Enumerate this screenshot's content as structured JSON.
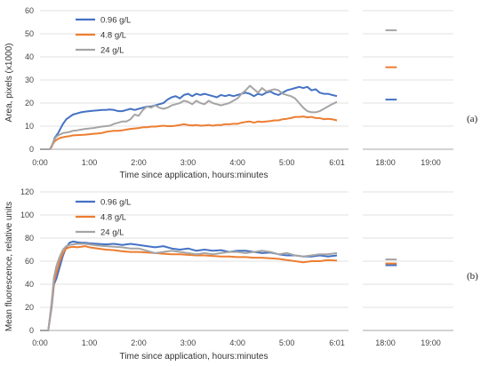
{
  "chart_data": [
    {
      "type": "line",
      "panel_label": "(a)",
      "ylabel": "Area, pixels (x1000)",
      "xlabel": "Time since application, hours:minutes",
      "ylim": [
        0,
        60
      ],
      "yticks": [
        "0",
        "10",
        "20",
        "30",
        "40",
        "50",
        "60"
      ],
      "xlim_minutes": [
        0,
        375
      ],
      "xticks": [
        "0:00",
        "1:00",
        "2:00",
        "3:00",
        "4:00",
        "5:00",
        "6:01"
      ],
      "xticks_minutes": [
        0,
        60,
        120,
        180,
        240,
        300,
        361
      ],
      "break_xticks": [
        "18:00",
        "19:00"
      ],
      "grid": true,
      "legend_position": "top-left",
      "series": [
        {
          "name": "0.96 g/L",
          "color": "#4472C4",
          "x": [
            0,
            12,
            14,
            16,
            18,
            20,
            22,
            25,
            28,
            32,
            36,
            40,
            45,
            50,
            55,
            60,
            65,
            70,
            75,
            80,
            85,
            90,
            95,
            100,
            105,
            110,
            115,
            120,
            125,
            130,
            135,
            140,
            145,
            150,
            155,
            160,
            165,
            170,
            175,
            180,
            185,
            190,
            195,
            200,
            205,
            210,
            215,
            220,
            225,
            230,
            235,
            240,
            245,
            250,
            255,
            260,
            265,
            270,
            275,
            280,
            285,
            290,
            295,
            300,
            305,
            310,
            315,
            320,
            325,
            330,
            335,
            340,
            345,
            350,
            355,
            361
          ],
          "y": [
            0,
            0,
            1,
            3,
            5,
            6,
            7,
            9,
            11,
            13,
            14,
            15,
            15.5,
            16,
            16.3,
            16.5,
            16.7,
            16.8,
            17,
            17,
            17.2,
            17,
            16.5,
            16.5,
            17,
            17.5,
            17,
            17.5,
            18,
            18.5,
            18.5,
            19,
            19.5,
            20,
            21.5,
            22.5,
            23,
            22,
            23.5,
            24,
            23,
            24,
            23.5,
            24,
            23.5,
            23,
            22.5,
            23.5,
            23,
            23.5,
            23,
            23.5,
            24,
            24.5,
            24,
            23,
            24,
            23.5,
            24.5,
            25,
            24,
            23.5,
            24.5,
            25.5,
            26,
            26.5,
            27,
            26.5,
            27,
            25.5,
            26,
            24.5,
            24,
            24,
            23.5,
            23
          ],
          "after_break_minutes": [
            1080,
            1095
          ],
          "after_break_y": 21.5
        },
        {
          "name": "4.8 g/L",
          "color": "#ED7D31",
          "x": [
            0,
            12,
            14,
            16,
            18,
            20,
            22,
            25,
            28,
            32,
            36,
            40,
            45,
            50,
            55,
            60,
            65,
            70,
            75,
            80,
            85,
            90,
            95,
            100,
            105,
            110,
            115,
            120,
            125,
            130,
            135,
            140,
            145,
            150,
            155,
            160,
            165,
            170,
            175,
            180,
            185,
            190,
            195,
            200,
            205,
            210,
            215,
            220,
            225,
            230,
            235,
            240,
            245,
            250,
            255,
            260,
            265,
            270,
            275,
            280,
            285,
            290,
            295,
            300,
            305,
            310,
            315,
            320,
            325,
            330,
            335,
            340,
            345,
            350,
            355,
            361
          ],
          "y": [
            0,
            0,
            1,
            2.5,
            3.5,
            4,
            4.5,
            5,
            5.2,
            5.5,
            5.7,
            6,
            6.1,
            6.2,
            6.3,
            6.5,
            6.7,
            6.8,
            7,
            7.5,
            7.8,
            8,
            8,
            8.2,
            8.5,
            8.8,
            9,
            9.2,
            9.5,
            9.5,
            9.8,
            9.8,
            10,
            10.2,
            10,
            10,
            10.2,
            10.5,
            10.8,
            10.5,
            10.3,
            10.5,
            10.2,
            10.3,
            10.5,
            10.2,
            10.5,
            10.5,
            10.8,
            10.8,
            11,
            11,
            11.5,
            11.8,
            12,
            11.5,
            12,
            11.8,
            12,
            12.2,
            12.5,
            12.5,
            13,
            13.2,
            13.5,
            14,
            14,
            14.2,
            13.8,
            14,
            13.5,
            13.5,
            13,
            13.2,
            13,
            12.5
          ],
          "after_break_minutes": [
            1080,
            1095
          ],
          "after_break_y": 35.5
        },
        {
          "name": "24 g/L",
          "color": "#A5A5A5",
          "x": [
            0,
            12,
            14,
            16,
            18,
            20,
            22,
            25,
            28,
            32,
            36,
            40,
            45,
            50,
            55,
            60,
            65,
            70,
            75,
            80,
            85,
            90,
            95,
            100,
            105,
            110,
            115,
            120,
            125,
            130,
            135,
            140,
            145,
            150,
            155,
            160,
            165,
            170,
            175,
            180,
            185,
            190,
            195,
            200,
            205,
            210,
            215,
            220,
            225,
            230,
            235,
            240,
            245,
            250,
            255,
            260,
            265,
            270,
            275,
            280,
            285,
            290,
            295,
            300,
            305,
            310,
            315,
            320,
            325,
            330,
            335,
            340,
            345,
            350,
            355,
            361
          ],
          "y": [
            0,
            0,
            1.5,
            3,
            4.5,
            5.5,
            6,
            6.5,
            7,
            7.2,
            7.5,
            8,
            8.2,
            8.5,
            8.8,
            9,
            9.2,
            9.5,
            9.8,
            10,
            10.2,
            11,
            11.5,
            12,
            12,
            13,
            15,
            14.5,
            17,
            18.5,
            18,
            19,
            18,
            17.5,
            18,
            19,
            19.5,
            20,
            21,
            20.5,
            19.5,
            21,
            20,
            19.5,
            21,
            20,
            19.5,
            19,
            19.5,
            20,
            21,
            22,
            24,
            25.5,
            27.5,
            26,
            24.5,
            26.5,
            25,
            25.5,
            26,
            25.5,
            24,
            23.5,
            23,
            22,
            20,
            18,
            16.5,
            16,
            16,
            16.5,
            17.5,
            18.5,
            19.5,
            20.5
          ],
          "after_break_minutes": [
            1080,
            1095
          ],
          "after_break_y": 51.5
        }
      ]
    },
    {
      "type": "line",
      "panel_label": "(b)",
      "ylabel": "Mean fluorescence, relative units",
      "xlabel": "Time since application, hours:minutes",
      "ylim": [
        0,
        120
      ],
      "yticks": [
        "0",
        "20",
        "40",
        "60",
        "80",
        "100",
        "120"
      ],
      "xlim_minutes": [
        0,
        375
      ],
      "xticks": [
        "0:00",
        "1:00",
        "2:00",
        "3:00",
        "4:00",
        "5:00",
        "6:01"
      ],
      "xticks_minutes": [
        0,
        60,
        120,
        180,
        240,
        300,
        361
      ],
      "break_xticks": [
        "18:00",
        "19:00"
      ],
      "grid": true,
      "legend_position": "top-left",
      "series": [
        {
          "name": "0.96 g/L",
          "color": "#4472C4",
          "x": [
            0,
            10,
            14,
            17,
            20,
            24,
            28,
            32,
            36,
            40,
            45,
            50,
            55,
            60,
            70,
            80,
            90,
            100,
            110,
            120,
            130,
            140,
            150,
            160,
            170,
            180,
            190,
            200,
            210,
            220,
            230,
            240,
            250,
            260,
            270,
            280,
            290,
            300,
            310,
            320,
            330,
            340,
            350,
            361
          ],
          "y": [
            0,
            0,
            20,
            40,
            45,
            55,
            65,
            72,
            76,
            77,
            76.5,
            76,
            76,
            75.5,
            75,
            74.5,
            75,
            74,
            75,
            74,
            73,
            72,
            73,
            71,
            70,
            71,
            69,
            70,
            69,
            69.5,
            68,
            69,
            69,
            68,
            67,
            67.5,
            66,
            65,
            65,
            64,
            64,
            65,
            64,
            65
          ],
          "after_break_minutes": [
            1080,
            1095
          ],
          "after_break_y": 56.5
        },
        {
          "name": "4.8 g/L",
          "color": "#ED7D31",
          "x": [
            0,
            10,
            14,
            17,
            20,
            24,
            28,
            32,
            36,
            40,
            45,
            50,
            55,
            60,
            70,
            80,
            90,
            100,
            110,
            120,
            130,
            140,
            150,
            160,
            170,
            180,
            190,
            200,
            210,
            220,
            230,
            240,
            250,
            260,
            270,
            280,
            290,
            300,
            310,
            320,
            330,
            340,
            350,
            361
          ],
          "y": [
            0,
            0,
            22,
            42,
            50,
            60,
            67,
            71,
            72,
            72.5,
            72,
            72.5,
            73,
            72,
            71,
            70,
            69.5,
            68.5,
            68,
            68,
            67.5,
            67,
            66.5,
            66,
            66,
            65.5,
            65,
            65,
            64.5,
            64,
            64,
            63.5,
            63.5,
            63,
            63,
            62.5,
            62,
            61,
            60,
            59,
            60,
            60,
            61,
            60.5
          ],
          "after_break_minutes": [
            1080,
            1095
          ],
          "after_break_y": 58
        },
        {
          "name": "24 g/L",
          "color": "#A5A5A5",
          "x": [
            0,
            10,
            14,
            17,
            20,
            24,
            28,
            32,
            36,
            40,
            45,
            50,
            55,
            60,
            70,
            80,
            90,
            100,
            110,
            120,
            130,
            140,
            150,
            160,
            170,
            180,
            190,
            200,
            210,
            220,
            230,
            240,
            250,
            260,
            270,
            280,
            290,
            300,
            310,
            320,
            330,
            340,
            350,
            361
          ],
          "y": [
            0,
            0,
            24,
            46,
            56,
            64,
            70,
            73,
            74,
            74.5,
            75,
            75,
            75,
            74.5,
            73.5,
            73,
            72.5,
            72,
            71,
            71,
            69,
            67,
            68,
            69,
            68,
            67,
            66,
            67,
            66,
            67,
            68,
            68,
            67,
            68,
            69,
            68,
            66,
            67,
            65,
            64,
            65,
            66,
            66,
            67
          ],
          "after_break_minutes": [
            1080,
            1095
          ],
          "after_break_y": 61.5
        }
      ]
    }
  ]
}
